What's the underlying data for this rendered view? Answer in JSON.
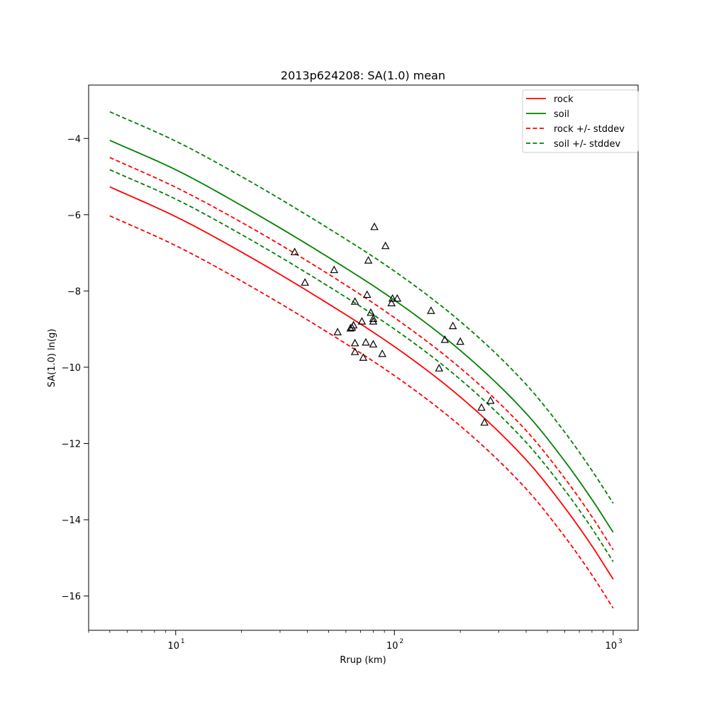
{
  "chart_data": {
    "type": "line",
    "title": "2013p624208: SA(1.0) mean",
    "xlabel": "Rrup (km)",
    "ylabel": "SA(1.0) ln(g)",
    "xscale": "log",
    "xlim": [
      4.0,
      1300
    ],
    "ylim": [
      -16.9,
      -2.6
    ],
    "x_ticks": [
      {
        "value": 10,
        "label": "10",
        "exp": "1"
      },
      {
        "value": 100,
        "label": "10",
        "exp": "2"
      },
      {
        "value": 1000,
        "label": "10",
        "exp": "3"
      }
    ],
    "y_ticks": [
      {
        "value": -16,
        "label": "−16"
      },
      {
        "value": -14,
        "label": "−14"
      },
      {
        "value": -12,
        "label": "−12"
      },
      {
        "value": -10,
        "label": "−10"
      },
      {
        "value": -8,
        "label": "−8"
      },
      {
        "value": -6,
        "label": "−6"
      },
      {
        "value": -4,
        "label": "−4"
      }
    ],
    "grid": false,
    "legend_position": "top-right",
    "x": [
      5,
      10,
      20,
      50,
      100,
      200,
      400,
      600,
      800,
      1000
    ],
    "series": [
      {
        "name": "rock",
        "color": "#ff0000",
        "style": "solid",
        "values": [
          -5.27,
          -6.05,
          -6.98,
          -8.34,
          -9.46,
          -10.78,
          -12.43,
          -13.68,
          -14.69,
          -15.56
        ]
      },
      {
        "name": "soil",
        "color": "#008000",
        "style": "solid",
        "values": [
          -4.05,
          -4.82,
          -5.76,
          -7.12,
          -8.24,
          -9.56,
          -11.21,
          -12.46,
          -13.47,
          -14.33
        ]
      },
      {
        "name": "rock +/- stddev",
        "color": "#ff0000",
        "style": "dashed",
        "values": [
          -4.5,
          -5.28,
          -6.2,
          -7.56,
          -8.7,
          -10.02,
          -11.66,
          -12.91,
          -13.92,
          -14.79
        ]
      },
      {
        "name": "",
        "color": "#ff0000",
        "style": "dashed",
        "values": [
          -6.03,
          -6.81,
          -7.74,
          -9.1,
          -10.22,
          -11.54,
          -13.19,
          -14.44,
          -15.45,
          -16.32
        ]
      },
      {
        "name": "soil +/- stddev",
        "color": "#008000",
        "style": "dashed",
        "values": [
          -3.3,
          -4.07,
          -5.0,
          -6.36,
          -7.48,
          -8.8,
          -10.45,
          -11.7,
          -12.71,
          -13.57
        ]
      },
      {
        "name": "",
        "color": "#008000",
        "style": "dashed",
        "values": [
          -4.82,
          -5.59,
          -6.52,
          -7.88,
          -9.0,
          -10.32,
          -11.97,
          -13.22,
          -14.23,
          -15.1
        ]
      }
    ],
    "observations": [
      {
        "x": 35,
        "y": -6.98
      },
      {
        "x": 39,
        "y": -7.78
      },
      {
        "x": 53,
        "y": -7.45
      },
      {
        "x": 55,
        "y": -9.08
      },
      {
        "x": 63,
        "y": -8.98
      },
      {
        "x": 64,
        "y": -8.96
      },
      {
        "x": 65,
        "y": -8.9
      },
      {
        "x": 66,
        "y": -8.28
      },
      {
        "x": 66,
        "y": -9.37
      },
      {
        "x": 66,
        "y": -9.6
      },
      {
        "x": 71,
        "y": -8.8
      },
      {
        "x": 72,
        "y": -9.75
      },
      {
        "x": 74,
        "y": -9.35
      },
      {
        "x": 75,
        "y": -8.1
      },
      {
        "x": 76,
        "y": -7.2
      },
      {
        "x": 78,
        "y": -8.57
      },
      {
        "x": 80,
        "y": -8.73
      },
      {
        "x": 80,
        "y": -8.8
      },
      {
        "x": 80,
        "y": -9.4
      },
      {
        "x": 81,
        "y": -6.32
      },
      {
        "x": 88,
        "y": -9.65
      },
      {
        "x": 91,
        "y": -6.82
      },
      {
        "x": 97,
        "y": -8.32
      },
      {
        "x": 98,
        "y": -8.2
      },
      {
        "x": 103,
        "y": -8.2
      },
      {
        "x": 147,
        "y": -8.52
      },
      {
        "x": 160,
        "y": -10.03
      },
      {
        "x": 170,
        "y": -9.28
      },
      {
        "x": 185,
        "y": -8.92
      },
      {
        "x": 200,
        "y": -9.33
      },
      {
        "x": 250,
        "y": -11.06
      },
      {
        "x": 258,
        "y": -11.45
      },
      {
        "x": 275,
        "y": -10.88
      }
    ],
    "observation_marker": "open-triangle",
    "observation_color": "#000000"
  },
  "legend": [
    {
      "label": "rock",
      "color": "#ff0000",
      "style": "solid"
    },
    {
      "label": "soil",
      "color": "#008000",
      "style": "solid"
    },
    {
      "label": "rock +/- stddev",
      "color": "#ff0000",
      "style": "dashed"
    },
    {
      "label": "soil +/- stddev",
      "color": "#008000",
      "style": "dashed"
    }
  ]
}
